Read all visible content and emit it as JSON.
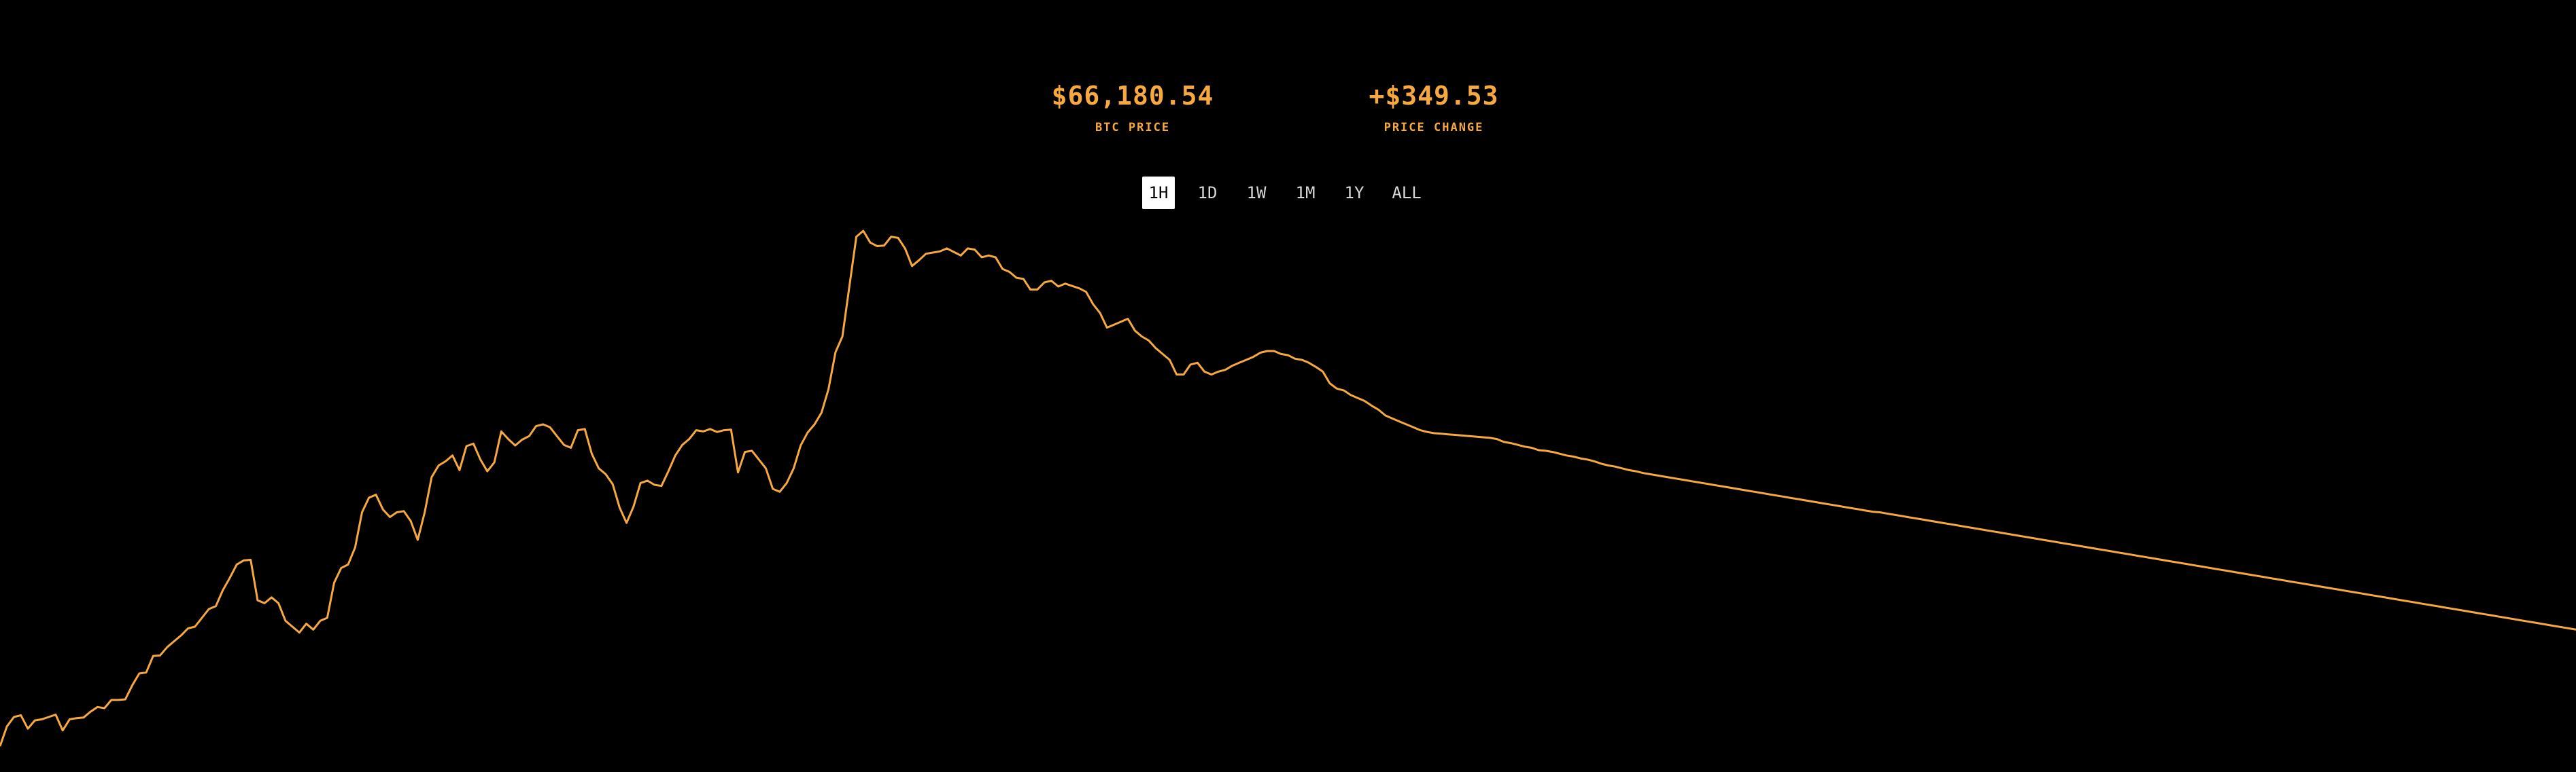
{
  "stats": {
    "price": {
      "value": "$66,180.54",
      "label": "BTC PRICE"
    },
    "change": {
      "value": "+$349.53",
      "label": "PRICE CHANGE"
    }
  },
  "ranges": [
    {
      "label": "1H",
      "active": true
    },
    {
      "label": "1D",
      "active": false
    },
    {
      "label": "1W",
      "active": false
    },
    {
      "label": "1M",
      "active": false
    },
    {
      "label": "1Y",
      "active": false
    },
    {
      "label": "ALL",
      "active": false
    }
  ],
  "colors": {
    "background": "#000000",
    "accent": "#f7a940",
    "range_text": "#d8d8d8",
    "range_active_bg": "#ffffff",
    "range_active_text": "#000000"
  },
  "chart_data": {
    "type": "line",
    "series": [
      {
        "values": [
          1,
          35,
          51,
          54,
          31,
          45,
          47,
          51,
          55,
          28,
          47,
          49,
          50,
          60,
          68,
          66,
          80,
          80,
          81,
          105,
          125,
          127,
          155,
          156,
          170,
          180,
          190,
          202,
          205,
          220,
          235,
          240,
          267,
          288,
          311,
          318,
          319,
          250,
          245,
          255,
          245,
          215,
          205,
          195,
          210,
          200,
          215,
          220,
          280,
          305,
          311,
          340,
          400,
          425,
          430,
          405,
          392,
          400,
          402,
          385,
          353,
          400,
          460,
          480,
          487,
          497,
          472,
          513,
          517,
          490,
          470,
          485,
          538,
          525,
          514,
          524,
          530,
          547,
          550,
          545,
          530,
          515,
          510,
          540,
          542,
          500,
          475,
          465,
          448,
          408,
          382,
          410,
          450,
          454,
          447,
          445,
          470,
          497,
          515,
          525,
          540,
          538,
          542,
          537,
          540,
          541,
          468,
          503,
          505,
          490,
          475,
          440,
          435,
          450,
          475,
          514,
          536,
          550,
          570,
          610,
          673,
          700,
          785,
          870,
          880,
          860,
          854,
          855,
          870,
          868,
          850,
          820,
          830,
          841,
          843,
          845,
          850,
          844,
          838,
          850,
          848,
          835,
          838,
          835,
          815,
          810,
          800,
          798,
          780,
          780,
          792,
          795,
          785,
          790,
          786,
          782,
          776,
          755,
          740,
          715,
          720,
          725,
          730,
          710,
          700,
          693,
          680,
          670,
          660,
          635,
          635,
          652,
          655,
          640,
          635,
          640,
          643,
          650,
          655,
          660,
          665,
          672,
          675,
          675,
          670,
          668,
          662,
          660,
          655,
          648,
          640,
          620,
          611,
          608,
          600,
          595,
          590,
          582,
          575,
          565,
          560,
          555,
          550,
          545,
          540,
          537,
          535,
          534,
          533,
          532,
          531,
          530,
          529,
          528,
          527,
          525,
          520,
          518,
          515,
          512,
          510,
          506,
          505,
          503,
          500,
          497,
          495,
          492,
          490,
          487,
          483,
          480,
          478,
          475,
          472,
          470,
          467,
          465,
          463,
          461,
          459,
          457,
          455,
          453,
          451,
          449,
          447,
          445,
          443,
          441,
          439,
          437,
          435,
          433,
          431,
          429,
          427,
          425,
          423,
          421,
          419,
          417,
          415,
          413,
          411,
          409,
          407,
          405,
          403,
          401,
          400,
          398,
          396,
          394,
          392,
          390,
          388,
          386,
          384,
          382,
          380,
          378,
          376,
          374,
          372,
          370,
          368,
          366,
          364,
          362,
          360,
          358,
          356,
          354,
          352,
          350,
          348,
          346,
          344,
          342,
          340,
          338,
          336,
          334,
          332,
          330,
          328,
          326,
          324,
          322,
          320,
          318,
          316,
          314,
          312,
          310,
          308,
          306,
          304,
          302,
          300,
          298,
          296,
          294,
          292,
          290,
          288,
          286,
          284,
          282,
          280,
          278,
          276,
          274,
          272,
          270,
          268,
          266,
          264,
          262,
          260,
          258,
          256,
          254,
          252,
          250,
          248,
          246,
          244,
          242,
          240,
          238,
          236,
          234,
          232,
          230,
          228,
          226,
          224,
          222,
          220,
          218,
          216,
          214,
          212,
          210,
          208,
          206,
          204,
          202,
          200
        ]
      }
    ],
    "color": "#f7a940",
    "grid": false,
    "legend": "none"
  }
}
